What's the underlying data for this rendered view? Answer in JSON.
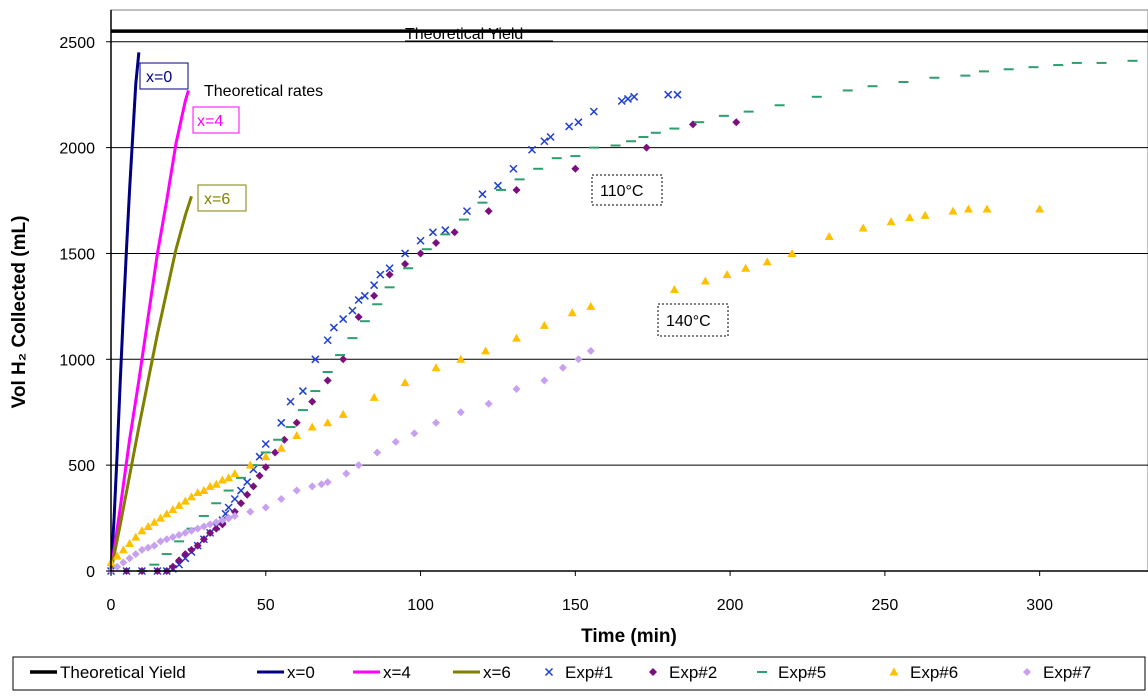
{
  "chart_data": {
    "type": "scatter",
    "xlabel": "Time (min)",
    "ylabel": "Vol H₂ Collected (mL)",
    "xlim": [
      0,
      335
    ],
    "ylim": [
      0,
      2650
    ],
    "x_ticks": [
      "0",
      "50",
      "100",
      "150",
      "200",
      "250",
      "300"
    ],
    "y_ticks": [
      "0",
      "500",
      "1000",
      "1500",
      "2000",
      "2500"
    ],
    "grid": "horizontal",
    "legend_position": "bottom",
    "annotations": {
      "theoretical_yield": "Theoretical Yield",
      "theoretical_rates": "Theoretical rates",
      "label_x0": "x=0",
      "label_x4": "x=4",
      "label_x6": "x=6",
      "temp_110": "110°C",
      "temp_140": "140°C"
    },
    "series": [
      {
        "name": "Theoretical Yield",
        "kind": "line",
        "color": "#000000",
        "width": 3.5,
        "x": [
          0,
          335
        ],
        "y": [
          2550,
          2550
        ]
      },
      {
        "name": "x=0",
        "kind": "line",
        "color": "#000080",
        "width": 3,
        "x": [
          0,
          1,
          2,
          3,
          4,
          5,
          6,
          7,
          8,
          9
        ],
        "y": [
          0,
          250,
          560,
          900,
          1220,
          1520,
          1800,
          2050,
          2300,
          2450
        ]
      },
      {
        "name": "x=4",
        "kind": "line",
        "color": "#FF00FF",
        "width": 3,
        "x": [
          0,
          3,
          6,
          9,
          12,
          15,
          18,
          21,
          24,
          25
        ],
        "y": [
          0,
          300,
          620,
          900,
          1200,
          1500,
          1750,
          2020,
          2220,
          2270
        ]
      },
      {
        "name": "x=6",
        "kind": "line",
        "color": "#808000",
        "width": 3,
        "x": [
          0,
          3,
          6,
          9,
          12,
          15,
          18,
          21,
          24,
          26
        ],
        "y": [
          0,
          220,
          450,
          680,
          900,
          1120,
          1320,
          1520,
          1680,
          1770
        ]
      },
      {
        "name": "Exp#1",
        "kind": "marker",
        "marker": "x",
        "color": "#1F3FD0",
        "x": [
          0,
          5,
          10,
          15,
          18,
          20,
          22,
          24,
          26,
          28,
          30,
          32,
          34,
          36,
          37,
          38,
          40,
          42,
          44,
          46,
          48,
          50,
          55,
          58,
          62,
          66,
          70,
          72,
          75,
          78,
          80,
          82,
          85,
          87,
          90,
          95,
          100,
          104,
          108,
          115,
          120,
          125,
          130,
          136,
          140,
          142,
          148,
          151,
          156,
          165,
          167,
          169,
          180,
          183
        ],
        "y": [
          0,
          0,
          0,
          0,
          0,
          10,
          30,
          60,
          90,
          120,
          150,
          180,
          210,
          240,
          270,
          300,
          340,
          380,
          420,
          480,
          540,
          600,
          700,
          800,
          850,
          1000,
          1090,
          1150,
          1190,
          1230,
          1280,
          1300,
          1350,
          1400,
          1430,
          1500,
          1560,
          1600,
          1610,
          1700,
          1780,
          1820,
          1900,
          1990,
          2030,
          2050,
          2100,
          2120,
          2170,
          2220,
          2230,
          2240,
          2250,
          2250
        ]
      },
      {
        "name": "Exp#2",
        "kind": "marker",
        "marker": "diamond",
        "color": "#7B0F7B",
        "x": [
          0,
          5,
          10,
          15,
          18,
          20,
          22,
          24,
          26,
          28,
          30,
          32,
          34,
          36,
          38,
          40,
          42,
          44,
          46,
          48,
          50,
          53,
          56,
          60,
          65,
          70,
          75,
          80,
          85,
          90,
          95,
          100,
          105,
          111,
          122,
          131,
          150,
          173,
          188,
          202
        ],
        "y": [
          0,
          0,
          0,
          0,
          0,
          20,
          50,
          80,
          100,
          120,
          150,
          180,
          200,
          220,
          250,
          280,
          320,
          360,
          400,
          450,
          490,
          560,
          620,
          700,
          800,
          900,
          1000,
          1200,
          1300,
          1400,
          1450,
          1500,
          1550,
          1600,
          1700,
          1800,
          1900,
          2000,
          2110,
          2120
        ]
      },
      {
        "name": "Exp#5",
        "kind": "marker",
        "marker": "dash",
        "color": "#2E9E6E",
        "x": [
          10,
          14,
          18,
          22,
          26,
          30,
          34,
          38,
          42,
          46,
          50,
          54,
          58,
          62,
          66,
          70,
          74,
          78,
          82,
          86,
          90,
          96,
          102,
          108,
          114,
          120,
          126,
          132,
          138,
          144,
          150,
          156,
          163,
          168,
          172,
          176,
          182,
          190,
          198,
          206,
          216,
          228,
          238,
          246,
          256,
          266,
          276,
          282,
          290,
          298,
          306,
          312,
          320,
          330
        ],
        "y": [
          0,
          30,
          80,
          140,
          200,
          260,
          320,
          380,
          440,
          500,
          560,
          620,
          680,
          760,
          850,
          940,
          1020,
          1100,
          1180,
          1260,
          1340,
          1430,
          1520,
          1590,
          1660,
          1740,
          1800,
          1850,
          1900,
          1950,
          1960,
          2000,
          2010,
          2030,
          2050,
          2070,
          2090,
          2120,
          2150,
          2170,
          2200,
          2240,
          2270,
          2290,
          2310,
          2330,
          2340,
          2360,
          2370,
          2380,
          2390,
          2400,
          2400,
          2410
        ]
      },
      {
        "name": "Exp#6",
        "kind": "marker",
        "marker": "triangle",
        "color": "#FFC000",
        "x": [
          0,
          2,
          4,
          6,
          8,
          10,
          12,
          14,
          16,
          18,
          20,
          22,
          24,
          26,
          28,
          30,
          32,
          34,
          36,
          38,
          40,
          45,
          50,
          55,
          60,
          65,
          70,
          75,
          85,
          95,
          105,
          113,
          121,
          131,
          140,
          149,
          155,
          182,
          192,
          199,
          205,
          212,
          220,
          232,
          243,
          252,
          258,
          263,
          272,
          277,
          283,
          300
        ],
        "y": [
          40,
          70,
          100,
          130,
          160,
          190,
          210,
          230,
          250,
          270,
          290,
          310,
          330,
          350,
          370,
          380,
          400,
          410,
          430,
          440,
          460,
          500,
          540,
          580,
          640,
          680,
          700,
          740,
          820,
          890,
          960,
          1000,
          1040,
          1100,
          1160,
          1220,
          1250,
          1330,
          1370,
          1400,
          1430,
          1460,
          1500,
          1580,
          1620,
          1650,
          1670,
          1680,
          1700,
          1710,
          1710,
          1710
        ]
      },
      {
        "name": "Exp#7",
        "kind": "marker",
        "marker": "diamond",
        "color": "#C8A0F0",
        "x": [
          0,
          2,
          4,
          6,
          8,
          10,
          12,
          14,
          16,
          18,
          20,
          22,
          24,
          26,
          28,
          30,
          32,
          34,
          36,
          38,
          40,
          45,
          50,
          55,
          60,
          65,
          68,
          70,
          76,
          80,
          86,
          92,
          98,
          105,
          113,
          122,
          131,
          140,
          146,
          151,
          155
        ],
        "y": [
          0,
          20,
          40,
          60,
          80,
          100,
          110,
          120,
          140,
          150,
          160,
          170,
          180,
          190,
          200,
          210,
          220,
          230,
          240,
          250,
          260,
          280,
          300,
          340,
          380,
          400,
          410,
          420,
          460,
          500,
          560,
          610,
          650,
          700,
          750,
          790,
          860,
          900,
          960,
          1000,
          1040
        ]
      }
    ]
  }
}
